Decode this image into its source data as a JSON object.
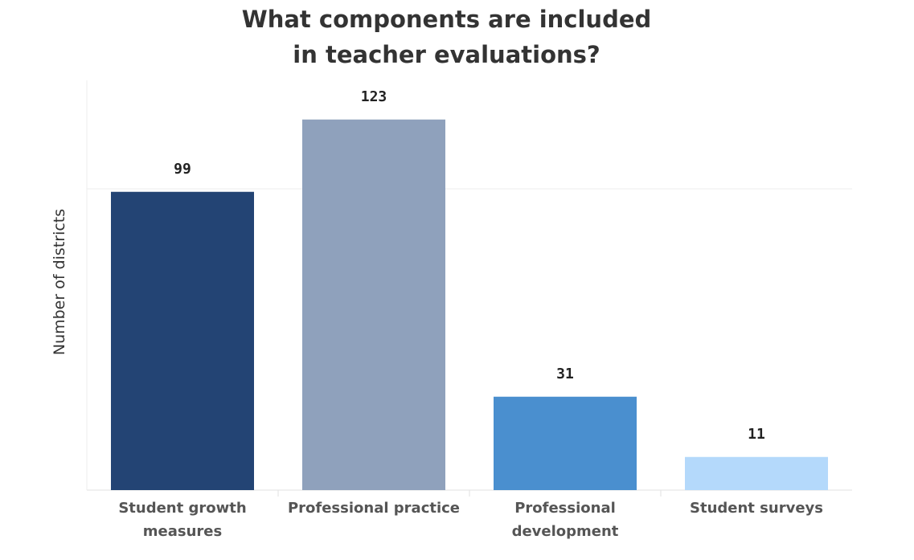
{
  "chart_data": {
    "type": "bar",
    "title": [
      "What components are included",
      "in teacher evaluations?"
    ],
    "ylabel": "Number of districts",
    "xlabel": "",
    "categories": [
      [
        "Student growth",
        "measures"
      ],
      [
        "Professional practice"
      ],
      [
        "Professional",
        "development"
      ],
      [
        "Student surveys"
      ]
    ],
    "values": [
      99,
      123,
      31,
      11
    ],
    "data_labels": [
      "99",
      "123",
      "31",
      "11"
    ],
    "colors": [
      "#234474",
      "#8fa1bc",
      "#4a8fcf",
      "#b4d9fb"
    ],
    "ylim": [
      0,
      136
    ],
    "gridlines": [
      100
    ],
    "grid": "horizontal",
    "legend": "none"
  }
}
